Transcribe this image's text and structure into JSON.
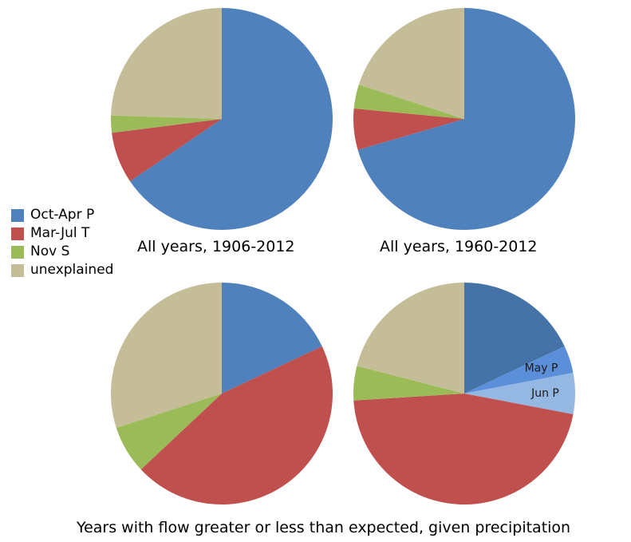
{
  "chart_data": [
    {
      "type": "pie",
      "title": "All years, 1906-2012",
      "slices": [
        {
          "label": "Oct-Apr P",
          "value": 65.5,
          "color": "#4f81bd"
        },
        {
          "label": "Mar-Jul T",
          "value": 7.5,
          "color": "#c0504d"
        },
        {
          "label": "Nov S",
          "value": 2.5,
          "color": "#9bbb59"
        },
        {
          "label": "unexplained",
          "value": 24.5,
          "color": "#c4bd97"
        }
      ]
    },
    {
      "type": "pie",
      "title": "All years, 1960-2012",
      "slices": [
        {
          "label": "Oct-Apr P",
          "value": 70.5,
          "color": "#4f81bd"
        },
        {
          "label": "Mar-Jul T",
          "value": 6,
          "color": "#c0504d"
        },
        {
          "label": "Nov S",
          "value": 3.5,
          "color": "#9bbb59"
        },
        {
          "label": "unexplained",
          "value": 20,
          "color": "#c4bd97"
        }
      ]
    },
    {
      "type": "pie",
      "title": "",
      "slices": [
        {
          "label": "Oct-Apr P",
          "value": 18,
          "color": "#4f81bd"
        },
        {
          "label": "Mar-Jul T",
          "value": 45,
          "color": "#c0504d"
        },
        {
          "label": "Nov S",
          "value": 7,
          "color": "#9bbb59"
        },
        {
          "label": "unexplained",
          "value": 30,
          "color": "#c4bd97"
        }
      ]
    },
    {
      "type": "pie",
      "title": "",
      "slices": [
        {
          "label": "Oct-Apr P",
          "value": 18,
          "color": "#4572a7",
          "show_label": false
        },
        {
          "label": "May P",
          "value": 4,
          "color": "#5b8fd9",
          "show_label": true
        },
        {
          "label": "Jun P",
          "value": 6,
          "color": "#95b8e3",
          "show_label": true
        },
        {
          "label": "Mar-Jul T",
          "value": 46,
          "color": "#c0504d",
          "show_label": false
        },
        {
          "label": "Nov S",
          "value": 5,
          "color": "#9bbb59",
          "show_label": false
        },
        {
          "label": "unexplained",
          "value": 21,
          "color": "#c4bd97",
          "show_label": false
        }
      ]
    }
  ],
  "legend": {
    "items": [
      {
        "label": "Oct-Apr P",
        "color": "#4f81bd"
      },
      {
        "label": "Mar-Jul T",
        "color": "#c0504d"
      },
      {
        "label": "Nov S",
        "color": "#9bbb59"
      },
      {
        "label": "unexplained",
        "color": "#c4bd97"
      }
    ]
  },
  "captions": {
    "top_left": "All years, 1906-2012",
    "top_right": "All years, 1960-2012",
    "bottom": "Years with flow greater or less than expected, given precipitation"
  }
}
